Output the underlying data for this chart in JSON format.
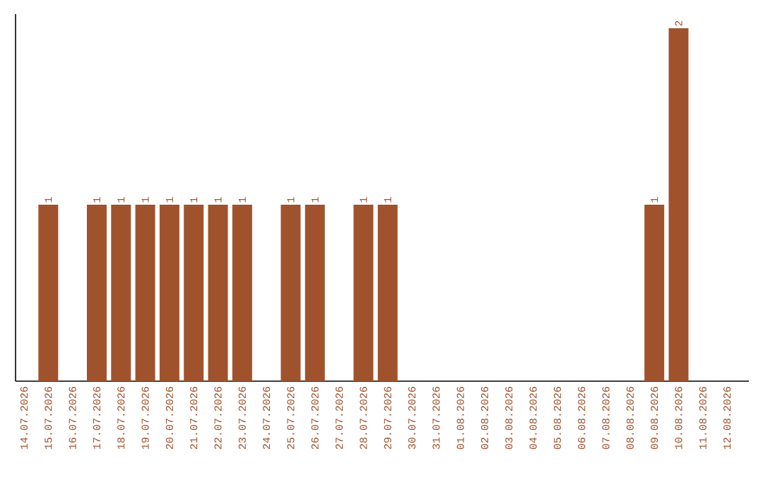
{
  "chart_data": {
    "type": "bar",
    "color": "#a0522d",
    "categories": [
      "14.07.2026",
      "15.07.2026",
      "16.07.2026",
      "17.07.2026",
      "18.07.2026",
      "19.07.2026",
      "20.07.2026",
      "21.07.2026",
      "22.07.2026",
      "23.07.2026",
      "24.07.2026",
      "25.07.2026",
      "26.07.2026",
      "27.07.2026",
      "28.07.2026",
      "29.07.2026",
      "30.07.2026",
      "31.07.2026",
      "01.08.2026",
      "02.08.2026",
      "03.08.2026",
      "04.08.2026",
      "05.08.2026",
      "06.08.2026",
      "07.08.2026",
      "08.08.2026",
      "09.08.2026",
      "10.08.2026",
      "11.08.2026",
      "12.08.2026"
    ],
    "values": [
      0,
      1,
      0,
      1,
      1,
      1,
      1,
      1,
      1,
      1,
      0,
      1,
      1,
      0,
      1,
      1,
      0,
      0,
      0,
      0,
      0,
      0,
      0,
      0,
      0,
      0,
      1,
      2,
      0,
      0
    ],
    "value_labels": [
      null,
      "1",
      null,
      "1",
      "1",
      "1",
      "1",
      "1",
      "1",
      "1",
      null,
      "1",
      "1",
      null,
      "1",
      "1",
      null,
      null,
      null,
      null,
      null,
      null,
      null,
      null,
      null,
      null,
      "1",
      "2",
      null,
      null
    ],
    "grid": false
  }
}
